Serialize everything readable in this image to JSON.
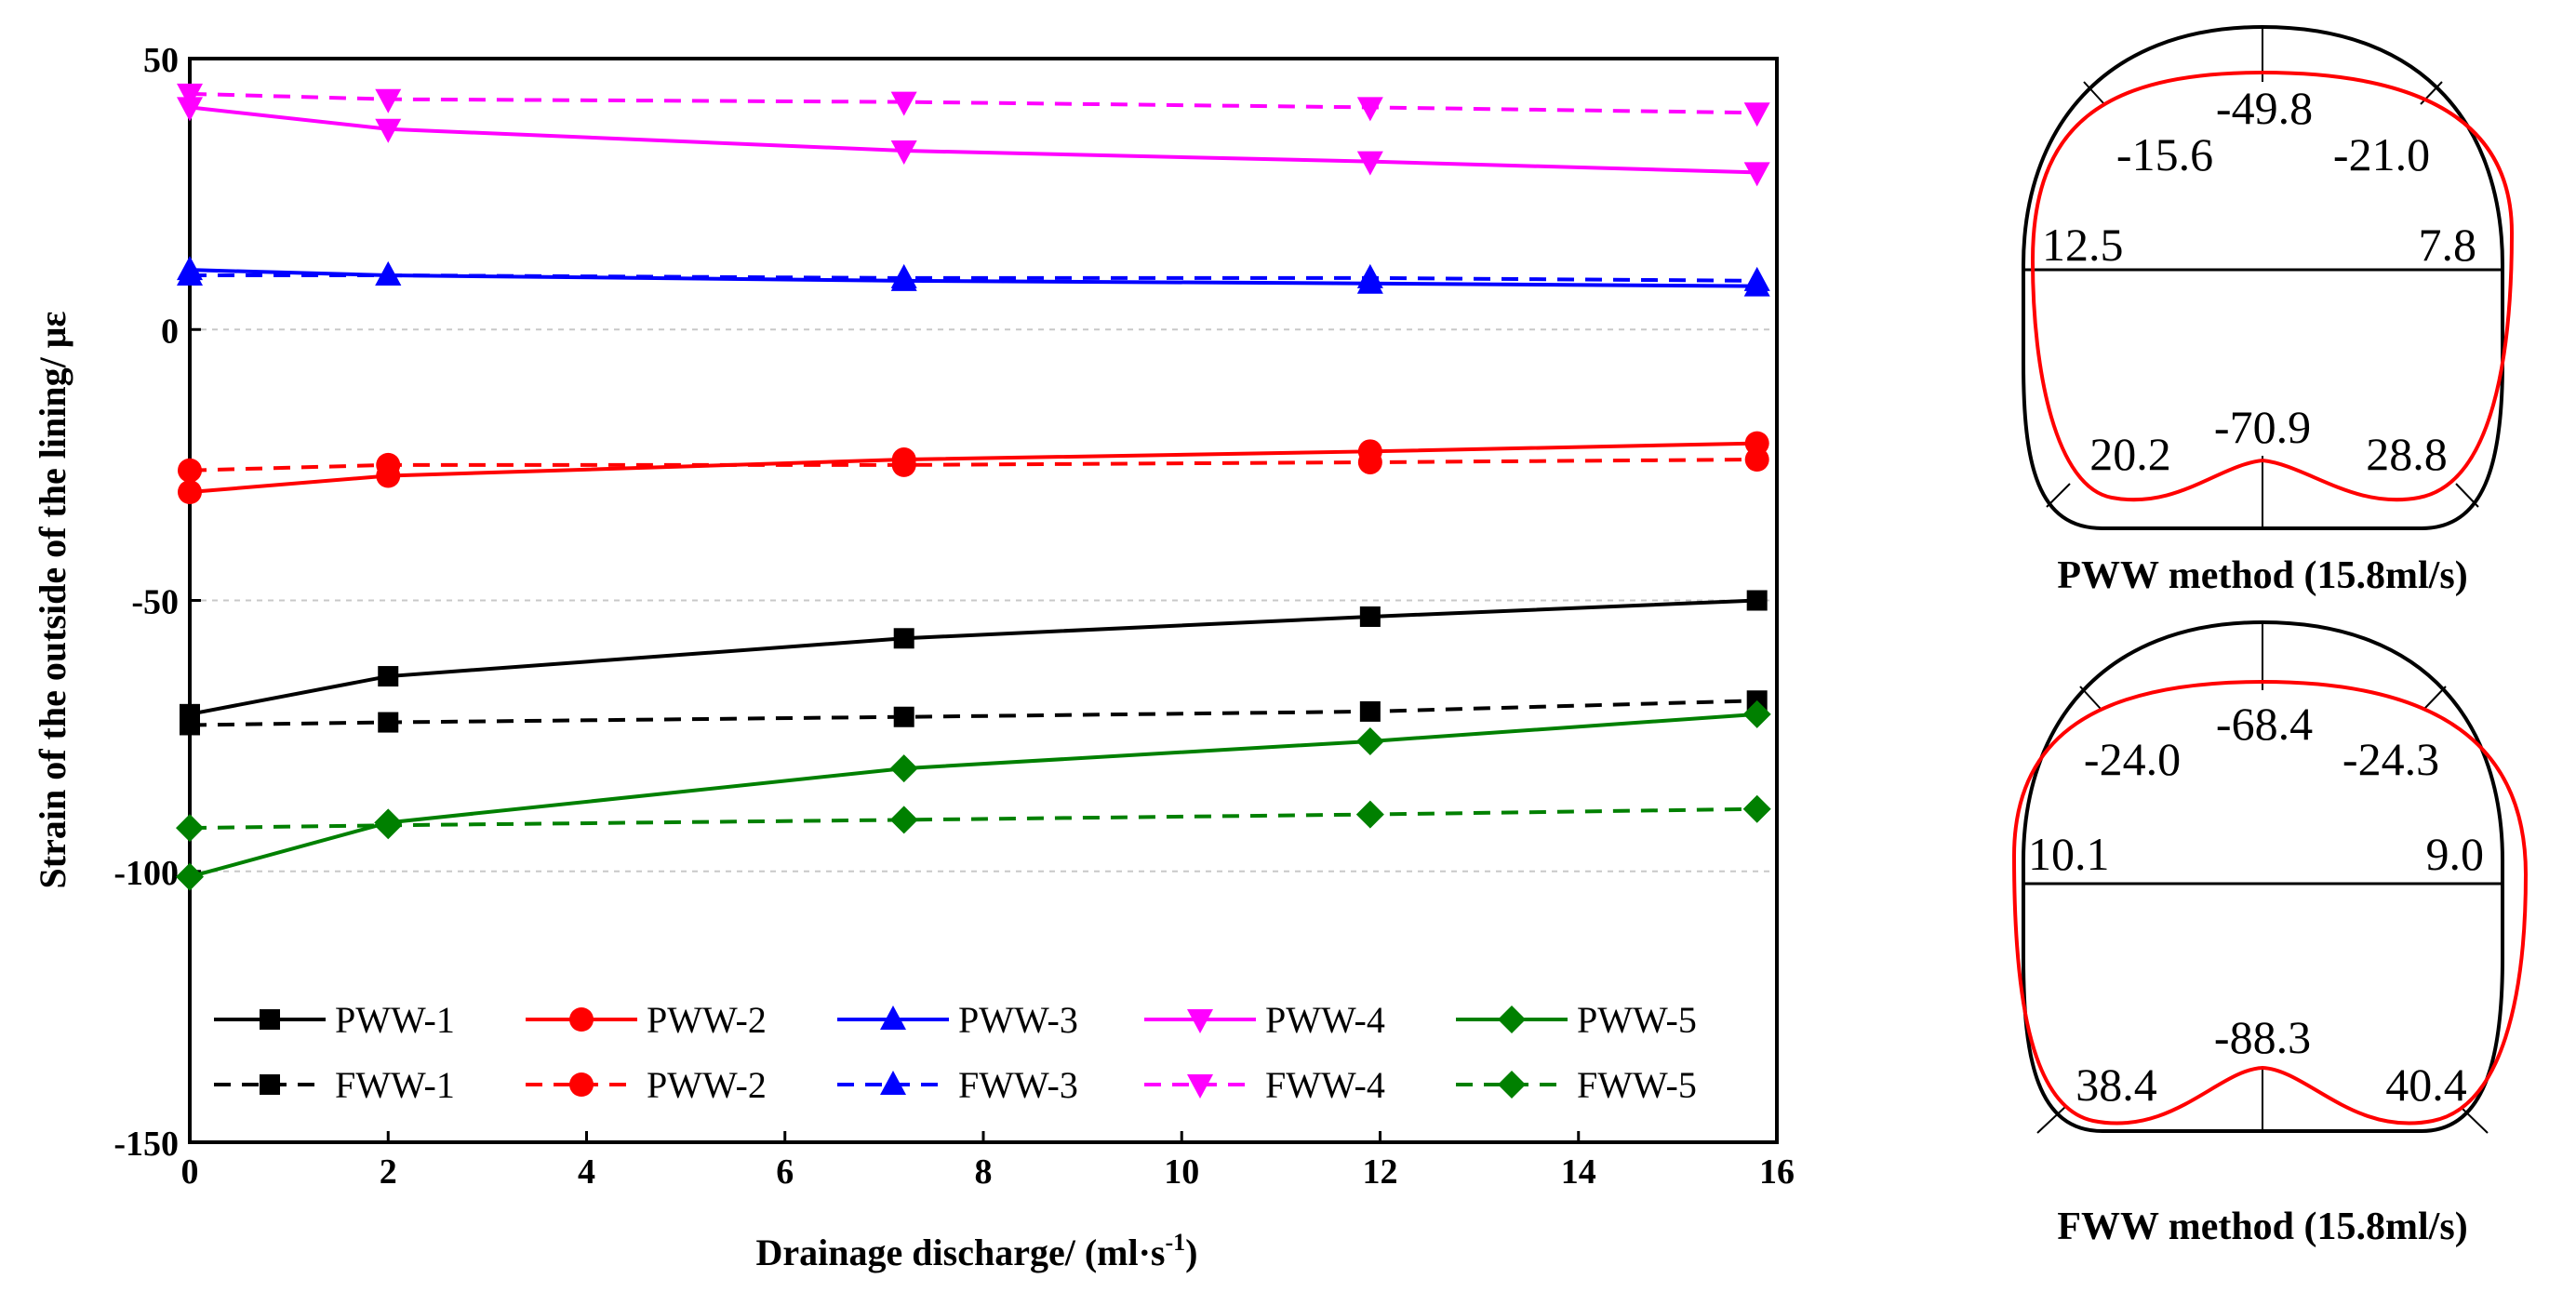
{
  "chart_data": [
    {
      "type": "line",
      "title": "",
      "xlabel": "Drainage discharge/ (ml·s",
      "xlabel_sup": "-1",
      "xlabel_close": ")",
      "ylabel": "Strain of the outside of the lining/ με",
      "xlim": [
        0,
        16
      ],
      "ylim": [
        -150,
        50
      ],
      "x_ticks": [
        "0",
        "2",
        "4",
        "6",
        "8",
        "10",
        "12",
        "14",
        "16"
      ],
      "y_ticks": [
        "50",
        "0",
        "-50",
        "-100",
        "-150"
      ],
      "gridlines": "horizontal dashed at 0, -50, -100",
      "legend_position": "bottom",
      "x": [
        0,
        2,
        7.2,
        11.9,
        15.8
      ],
      "series": [
        {
          "name": "PWW-1",
          "color": "#000000",
          "marker": "square",
          "dash": false,
          "values": [
            -71,
            -64,
            -57,
            -53,
            -50
          ]
        },
        {
          "name": "PWW-2",
          "color": "#ff0000",
          "marker": "circle",
          "dash": false,
          "values": [
            -30,
            -27,
            -24,
            -22.5,
            -21
          ]
        },
        {
          "name": "PWW-3",
          "color": "#0000ff",
          "marker": "triangle-up",
          "dash": false,
          "values": [
            11,
            10,
            9,
            8.5,
            8
          ]
        },
        {
          "name": "PWW-4",
          "color": "#ff00ff",
          "marker": "triangle-down",
          "dash": false,
          "values": [
            41,
            37,
            33,
            31,
            29
          ]
        },
        {
          "name": "PWW-5",
          "color": "#008000",
          "marker": "diamond",
          "dash": false,
          "values": [
            -101,
            -91,
            -81,
            -76,
            -71
          ]
        },
        {
          "name": "FWW-1",
          "color": "#000000",
          "marker": "square",
          "dash": true,
          "values": [
            -73,
            -72.5,
            -71.5,
            -70.5,
            -68.5
          ]
        },
        {
          "name": "PWW-2",
          "color": "#ff0000",
          "marker": "circle",
          "dash": true,
          "values": [
            -26,
            -25,
            -25,
            -24.5,
            -24
          ]
        },
        {
          "name": "FWW-3",
          "color": "#0000ff",
          "marker": "triangle-up",
          "dash": true,
          "values": [
            10,
            10,
            9.5,
            9.5,
            9
          ]
        },
        {
          "name": "FWW-4",
          "color": "#ff00ff",
          "marker": "triangle-down",
          "dash": true,
          "values": [
            43.5,
            42.5,
            42,
            41,
            40
          ]
        },
        {
          "name": "FWW-5",
          "color": "#008000",
          "marker": "diamond",
          "dash": true,
          "values": [
            -92,
            -91.5,
            -90.5,
            -89.5,
            -88.5
          ]
        }
      ]
    },
    {
      "type": "diagram",
      "caption": "PWW method (15.8ml/s)",
      "labels": {
        "crown": "-49.8",
        "upper_left": "-15.6",
        "upper_right": "-21.0",
        "mid_left": "12.5",
        "mid_right": "7.8",
        "invert": "-70.9",
        "lower_left": "20.2",
        "lower_right": "28.8"
      }
    },
    {
      "type": "diagram",
      "caption": "FWW method (15.8ml/s)",
      "labels": {
        "crown": "-68.4",
        "upper_left": "-24.0",
        "upper_right": "-24.3",
        "mid_left": "10.1",
        "mid_right": "9.0",
        "invert": "-88.3",
        "lower_left": "38.4",
        "lower_right": "40.4"
      }
    }
  ]
}
